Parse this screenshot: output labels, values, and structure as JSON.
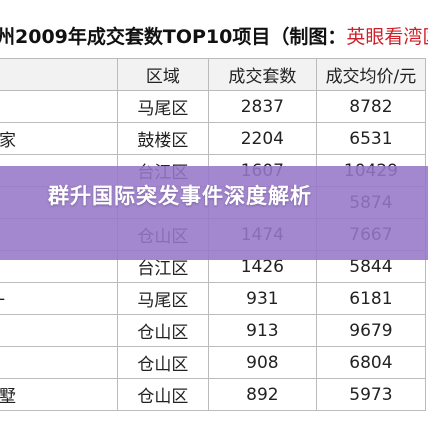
{
  "title": {
    "main": "州2009年成交套数TOP10项目（制图：",
    "source": "英眼看湾区"
  },
  "table": {
    "header": [
      "区域",
      "成交套数",
      "成交均价/元"
    ],
    "rows": [
      [
        null,
        "马尾区",
        "2837",
        "8782"
      ],
      [
        "家",
        "鼓楼区",
        "2204",
        "6531"
      ],
      [
        null,
        "台江区",
        "1607",
        "10429"
      ],
      [
        null,
        null,
        null,
        "5874"
      ],
      [
        null,
        "仓山区",
        "1474",
        "7667"
      ],
      [
        null,
        "台江区",
        "1426",
        "5844"
      ],
      [
        "-",
        "马尾区",
        "931",
        "6181"
      ],
      [
        null,
        "仓山区",
        "913",
        "9679"
      ],
      [
        null,
        "仓山区",
        "908",
        "6804"
      ],
      [
        "墅",
        "仓山区",
        "892",
        "5973"
      ]
    ]
  },
  "banner": {
    "text": "群升国际突发事件深度解析"
  }
}
